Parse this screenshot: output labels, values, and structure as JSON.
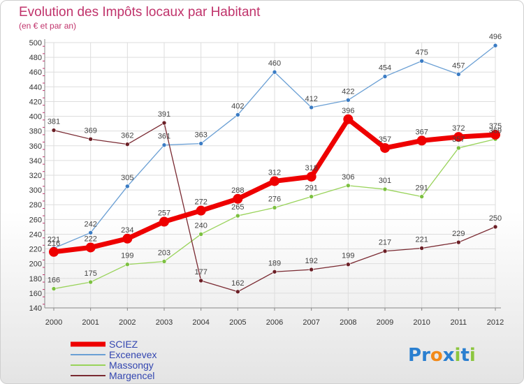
{
  "chart_data": {
    "type": "line",
    "title": "Evolution des Impôts locaux par Habitant",
    "subtitle": "(en € et par an)",
    "xlabel": "",
    "ylabel": "",
    "categories": [
      "2000",
      "2001",
      "2002",
      "2003",
      "2004",
      "2005",
      "2006",
      "2007",
      "2008",
      "2009",
      "2010",
      "2011",
      "2012"
    ],
    "ylim": [
      140,
      500
    ],
    "ytick_step": 20,
    "grid": true,
    "series": [
      {
        "name": "SCIEZ",
        "color": "#ee0000",
        "emphasis": true,
        "values": [
          216,
          222,
          234,
          257,
          272,
          288,
          312,
          318,
          396,
          357,
          367,
          372,
          375
        ],
        "labels": [
          "216",
          "222",
          "234",
          "257",
          "272",
          "288",
          "312",
          "318",
          "396",
          "357",
          "367",
          "372",
          "375"
        ]
      },
      {
        "name": "Excenevex",
        "color": "#6a9fd4",
        "marker": "#3b7cc4",
        "values": [
          221,
          242,
          305,
          361,
          363,
          402,
          460,
          412,
          422,
          454,
          475,
          457,
          496
        ],
        "labels": [
          "221",
          "242",
          "305",
          "361",
          "363",
          "402",
          "460",
          "412",
          "422",
          "454",
          "475",
          "457",
          "496"
        ]
      },
      {
        "name": "Massongy",
        "color": "#99d35a",
        "marker": "#7cc040",
        "values": [
          166,
          175,
          199,
          203,
          240,
          265,
          276,
          291,
          306,
          301,
          291,
          357,
          369
        ],
        "labels": [
          "166",
          "175",
          "199",
          "203",
          "240",
          "265",
          "276",
          "291",
          "306",
          "301",
          "291",
          "357",
          "369"
        ]
      },
      {
        "name": "Margencel",
        "color": "#7a2a32",
        "marker": "#6b1f26",
        "values": [
          381,
          369,
          362,
          391,
          177,
          162,
          189,
          192,
          199,
          217,
          221,
          229,
          250
        ],
        "labels": [
          "381",
          "369",
          "362",
          "391",
          "177",
          "162",
          "189",
          "192",
          "199",
          "217",
          "221",
          "229",
          "250"
        ]
      }
    ],
    "legend_position": "bottom-left"
  },
  "brand": {
    "logo_text": "Proxiti",
    "letters": [
      "P",
      "r",
      "o",
      "x",
      "i",
      "t",
      "i"
    ],
    "letter_colors": [
      "#2a7fd0",
      "#2a7fd0",
      "#f28a1a",
      "#2a7fd0",
      "#8cc63f",
      "#2a7fd0",
      "#8cc63f"
    ]
  }
}
